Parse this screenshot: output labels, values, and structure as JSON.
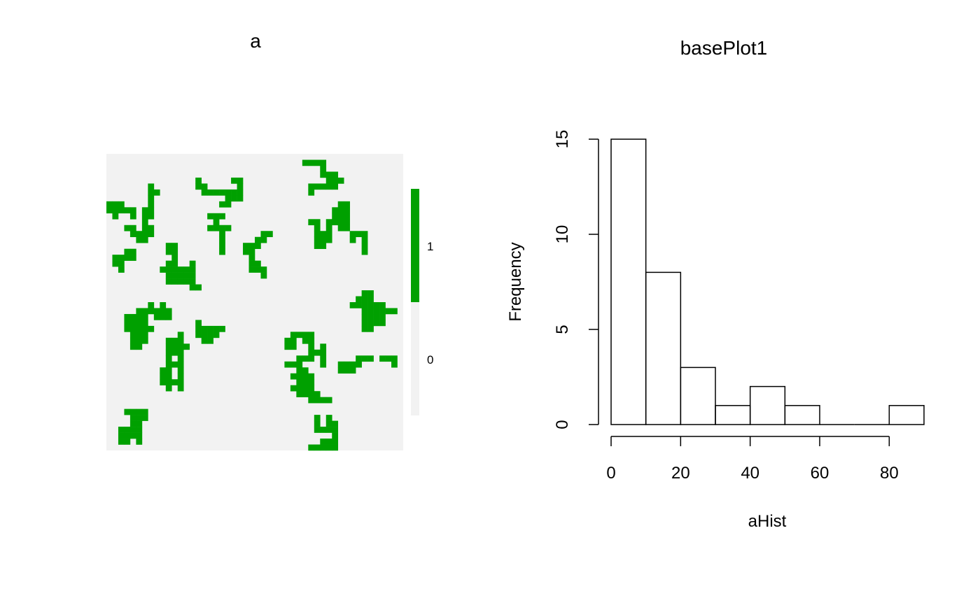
{
  "chart_data": [
    {
      "type": "heatmap",
      "title": "a",
      "colors": {
        "0": "#f2f2f2",
        "1": "#00a000"
      },
      "legend": {
        "labels": [
          "1",
          "0"
        ],
        "placement": "right"
      },
      "grid": {
        "rows": 50,
        "cols": 50,
        "seed": 173
      }
    },
    {
      "type": "bar",
      "subtype": "histogram",
      "title": "basePlot1",
      "xlabel": "aHist",
      "ylabel": "Frequency",
      "bins": [
        [
          0,
          10
        ],
        [
          10,
          20
        ],
        [
          20,
          30
        ],
        [
          30,
          40
        ],
        [
          40,
          50
        ],
        [
          50,
          60
        ],
        [
          60,
          70
        ],
        [
          70,
          80
        ],
        [
          80,
          90
        ]
      ],
      "values": [
        15,
        8,
        3,
        1,
        2,
        1,
        0,
        0,
        1
      ],
      "xlim": [
        0,
        90
      ],
      "ylim": [
        0,
        15
      ],
      "xticks": [
        0,
        20,
        40,
        60,
        80
      ],
      "yticks": [
        0,
        5,
        10,
        15
      ],
      "xtick_labels": [
        "0",
        "20",
        "40",
        "60",
        "80"
      ],
      "ytick_labels": [
        "0",
        "5",
        "10",
        "15"
      ]
    }
  ]
}
